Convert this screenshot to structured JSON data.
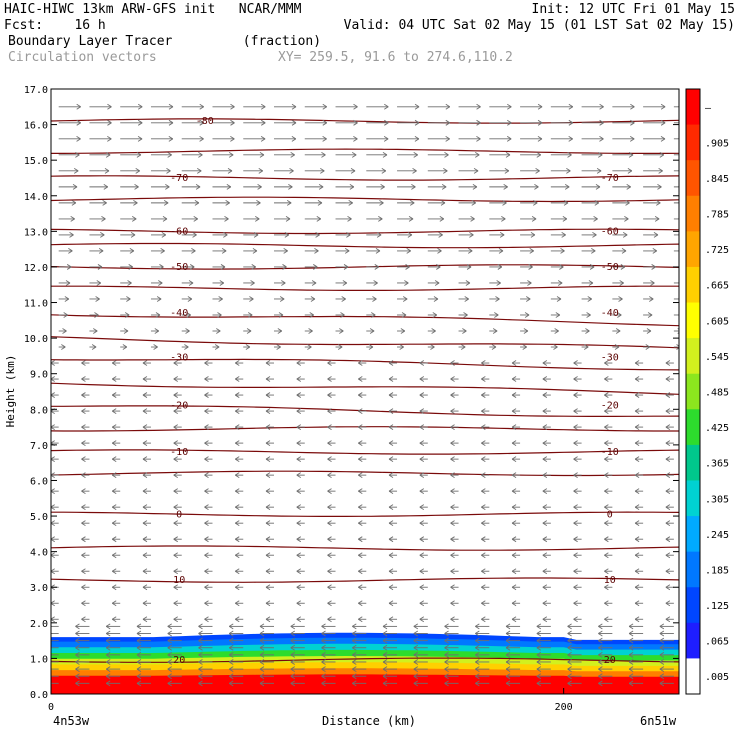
{
  "header": {
    "line1_left": "HAIC-HIWC 13km ARW-GFS init   NCAR/MMM",
    "line1_right": "Init: 12 UTC Fri 01 May 15",
    "line2_left": "Fcst:    16 h",
    "line2_right": "Valid: 04 UTC Sat 02 May 15 (01 LST Sat 02 May 15)",
    "line3_left": "Boundary Layer Tracer         (fraction)",
    "line4_left": "Circulation vectors",
    "line4_right": "XY= 259.5, 91.6 to 274.6,110.2"
  },
  "axes": {
    "ylabel": "Height (km)",
    "xlabel": "Distance (km)",
    "x_left_label": "4n53w",
    "x_right_label": "6n51w"
  },
  "colors": {
    "contour": "#7a0a0a",
    "vector": "#6e6e6e"
  },
  "chart_data": {
    "type": "heatmap",
    "x_range_km": [
      0,
      245
    ],
    "ylim_km": [
      0,
      17
    ],
    "y_ticks": [
      "0.0",
      "1.0",
      "2.0",
      "3.0",
      "4.0",
      "5.0",
      "6.0",
      "7.0",
      "8.0",
      "9.0",
      "10.0",
      "11.0",
      "12.0",
      "13.0",
      "14.0",
      "15.0",
      "16.0",
      "17.0"
    ],
    "x_ticks": [
      "0",
      "200"
    ],
    "x_tick_values": [
      0,
      200
    ],
    "colorbar": {
      "labels": [
        "–",
        ".905",
        ".845",
        ".785",
        ".725",
        ".665",
        ".605",
        ".545",
        ".485",
        ".425",
        ".365",
        ".305",
        ".245",
        ".185",
        ".125",
        ".065",
        ".005"
      ],
      "colors": [
        "#ff0000",
        "#ff2a00",
        "#ff5500",
        "#ff7f00",
        "#ffa500",
        "#ffd000",
        "#ffff00",
        "#d2f01e",
        "#8ce61e",
        "#2ddc2d",
        "#00c88c",
        "#00d2d2",
        "#00aaff",
        "#0078ff",
        "#0046ff",
        "#1e1eff",
        "#ffffff"
      ]
    },
    "temperature_contours": [
      {
        "label": "-80",
        "height_km": 16.1
      },
      {
        "label": "-70",
        "height_km": 14.5
      },
      {
        "label": "-60",
        "height_km": 13.0
      },
      {
        "label": "-50",
        "height_km": 12.0
      },
      {
        "label": "-40",
        "height_km": 10.7
      },
      {
        "label": "-30",
        "height_km": 9.45
      },
      {
        "label": "-20",
        "height_km": 8.1
      },
      {
        "label": "-10",
        "height_km": 6.8
      },
      {
        "label": "0",
        "height_km": 5.05
      },
      {
        "label": "10",
        "height_km": 3.2
      },
      {
        "label": "20",
        "height_km": 0.95
      }
    ],
    "extra_contour_heights_km": [
      15.25,
      13.9,
      12.6,
      11.4,
      10.0,
      8.75,
      7.45,
      6.2,
      4.1
    ],
    "tracer_top_km": 1.6
  }
}
